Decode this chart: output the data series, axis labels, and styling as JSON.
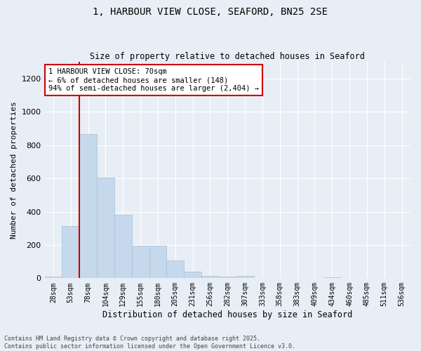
{
  "title_line1": "1, HARBOUR VIEW CLOSE, SEAFORD, BN25 2SE",
  "title_line2": "Size of property relative to detached houses in Seaford",
  "xlabel": "Distribution of detached houses by size in Seaford",
  "ylabel": "Number of detached properties",
  "categories": [
    "28sqm",
    "53sqm",
    "78sqm",
    "104sqm",
    "129sqm",
    "155sqm",
    "180sqm",
    "205sqm",
    "231sqm",
    "256sqm",
    "282sqm",
    "307sqm",
    "333sqm",
    "358sqm",
    "383sqm",
    "409sqm",
    "434sqm",
    "460sqm",
    "485sqm",
    "511sqm",
    "536sqm"
  ],
  "values": [
    10,
    315,
    865,
    605,
    380,
    195,
    195,
    105,
    40,
    15,
    10,
    15,
    0,
    0,
    0,
    0,
    5,
    0,
    0,
    0,
    0
  ],
  "bar_color": "#c5d8ec",
  "bar_edge_color": "#aabfd6",
  "marker_color": "#cc0000",
  "annotation_text": "1 HARBOUR VIEW CLOSE: 70sqm\n← 6% of detached houses are smaller (148)\n94% of semi-detached houses are larger (2,404) →",
  "annotation_box_color": "#ffffff",
  "annotation_box_edge": "#cc0000",
  "ylim": [
    0,
    1300
  ],
  "yticks": [
    0,
    200,
    400,
    600,
    800,
    1000,
    1200
  ],
  "footer_line1": "Contains HM Land Registry data © Crown copyright and database right 2025.",
  "footer_line2": "Contains public sector information licensed under the Open Government Licence v3.0.",
  "bg_color": "#e8eef5"
}
